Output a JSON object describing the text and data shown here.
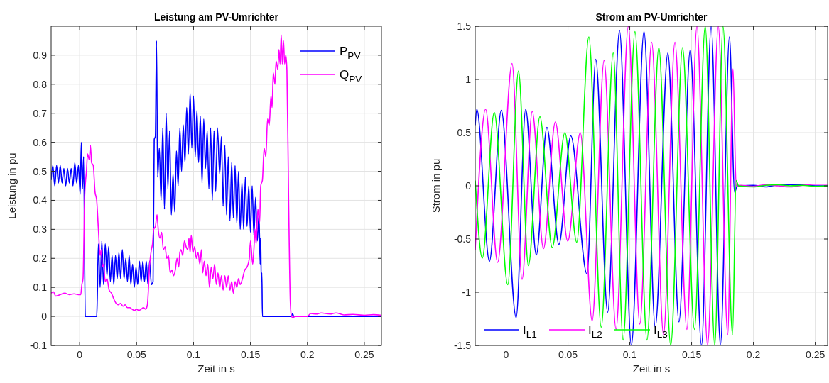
{
  "chart_data": [
    {
      "type": "line",
      "title": "Leistung am PV-Umrichter",
      "xlabel": "Zeit in s",
      "ylabel": "Leistung in pu",
      "xlim": [
        -0.025,
        0.265
      ],
      "xticks": [
        0,
        0.05,
        0.1,
        0.15,
        0.2,
        0.25
      ],
      "ylim": [
        -0.1,
        1
      ],
      "yticks": [
        -0.1,
        0,
        0.1,
        0.2,
        0.3,
        0.4,
        0.5,
        0.6,
        0.7,
        0.8,
        0.9
      ],
      "grid": true,
      "legend": "top right",
      "series": [
        {
          "name": "P$_{PV}$",
          "color": "#0000ff",
          "x": [
            -0.025,
            -0.0235,
            -0.0218,
            -0.0202,
            -0.0186,
            -0.017,
            -0.0154,
            -0.0138,
            -0.0122,
            -0.0106,
            -0.009,
            -0.0074,
            -0.0058,
            -0.0042,
            -0.0026,
            -0.001,
            0.0005,
            0.0015,
            0.0025,
            0.0035,
            0.005,
            0.015,
            0.0155,
            0.0165,
            0.018,
            0.0195,
            0.021,
            0.0225,
            0.024,
            0.0255,
            0.027,
            0.0285,
            0.03,
            0.0315,
            0.033,
            0.0345,
            0.036,
            0.0375,
            0.039,
            0.0405,
            0.042,
            0.0435,
            0.045,
            0.0465,
            0.048,
            0.0495,
            0.051,
            0.0525,
            0.054,
            0.0555,
            0.057,
            0.0585,
            0.06,
            0.0615,
            0.063,
            0.0645,
            0.0655,
            0.0665,
            0.0675,
            0.0685,
            0.07,
            0.0715,
            0.073,
            0.0745,
            0.076,
            0.0775,
            0.079,
            0.0805,
            0.082,
            0.0835,
            0.085,
            0.0865,
            0.088,
            0.0895,
            0.091,
            0.0925,
            0.094,
            0.0955,
            0.097,
            0.0985,
            0.1,
            0.1015,
            0.103,
            0.1045,
            0.106,
            0.1075,
            0.109,
            0.1105,
            0.112,
            0.1135,
            0.115,
            0.1165,
            0.118,
            0.1195,
            0.121,
            0.123,
            0.1245,
            0.126,
            0.1275,
            0.129,
            0.1305,
            0.132,
            0.1335,
            0.135,
            0.1365,
            0.138,
            0.1395,
            0.141,
            0.1425,
            0.144,
            0.1455,
            0.147,
            0.1485,
            0.15,
            0.1515,
            0.153,
            0.1545,
            0.156,
            0.1575,
            0.1585,
            0.159,
            0.1595,
            0.16,
            0.1605,
            0.186,
            0.187,
            0.188,
            0.265
          ],
          "values": [
            0.47,
            0.52,
            0.45,
            0.52,
            0.46,
            0.52,
            0.46,
            0.51,
            0.45,
            0.51,
            0.46,
            0.51,
            0.45,
            0.53,
            0.46,
            0.52,
            0.42,
            0.6,
            0.44,
            0.55,
            0,
            0,
            0.06,
            0.25,
            0.1,
            0.26,
            0.11,
            0.25,
            0.14,
            0.24,
            0.12,
            0.21,
            0.11,
            0.21,
            0.13,
            0.22,
            0.13,
            0.23,
            0.13,
            0.2,
            0.12,
            0.21,
            0.11,
            0.18,
            0.1,
            0.17,
            0.11,
            0.19,
            0.12,
            0.19,
            0.12,
            0.19,
            0.11,
            0.19,
            0.11,
            0.12,
            0.61,
            0.62,
            0.95,
            0.48,
            0.58,
            0.4,
            0.65,
            0.37,
            0.7,
            0.44,
            0.64,
            0.35,
            0.49,
            0.36,
            0.57,
            0.45,
            0.65,
            0.5,
            0.66,
            0.53,
            0.72,
            0.56,
            0.77,
            0.58,
            0.76,
            0.55,
            0.71,
            0.53,
            0.69,
            0.46,
            0.68,
            0.51,
            0.64,
            0.44,
            0.65,
            0.4,
            0.64,
            0.43,
            0.65,
            0.49,
            0.62,
            0.38,
            0.59,
            0.35,
            0.55,
            0.33,
            0.53,
            0.34,
            0.52,
            0.32,
            0.5,
            0.3,
            0.46,
            0.3,
            0.48,
            0.31,
            0.45,
            0.29,
            0.45,
            0.28,
            0.41,
            0.26,
            0.35,
            0.18,
            0.27,
            0.12,
            0.15,
            0,
            0,
            0.01,
            0,
            0
          ]
        },
        {
          "name": "Q$_{PV}$",
          "color": "#ff00ff",
          "x": [
            -0.025,
            -0.023,
            -0.021,
            -0.017,
            -0.013,
            -0.009,
            -0.005,
            -0.001,
            0.001,
            0.002,
            0.003,
            0.0045,
            0.006,
            0.007,
            0.0085,
            0.0095,
            0.0105,
            0.012,
            0.0135,
            0.015,
            0.0165,
            0.018,
            0.019,
            0.02,
            0.021,
            0.0225,
            0.024,
            0.026,
            0.028,
            0.03,
            0.032,
            0.034,
            0.036,
            0.038,
            0.04,
            0.042,
            0.044,
            0.046,
            0.048,
            0.05,
            0.052,
            0.054,
            0.056,
            0.058,
            0.0595,
            0.0615,
            0.063,
            0.064,
            0.065,
            0.0665,
            0.068,
            0.069,
            0.0705,
            0.072,
            0.0735,
            0.075,
            0.0765,
            0.078,
            0.0795,
            0.081,
            0.0825,
            0.084,
            0.0855,
            0.087,
            0.088,
            0.089,
            0.0905,
            0.092,
            0.0935,
            0.095,
            0.096,
            0.097,
            0.098,
            0.0995,
            0.101,
            0.1025,
            0.104,
            0.1055,
            0.107,
            0.108,
            0.1095,
            0.111,
            0.1125,
            0.114,
            0.1155,
            0.117,
            0.1185,
            0.12,
            0.1215,
            0.123,
            0.1245,
            0.126,
            0.1275,
            0.129,
            0.1305,
            0.132,
            0.1335,
            0.135,
            0.1365,
            0.138,
            0.1395,
            0.141,
            0.143,
            0.145,
            0.147,
            0.149,
            0.15,
            0.152,
            0.153,
            0.154,
            0.155,
            0.1565,
            0.158,
            0.159,
            0.1605,
            0.162,
            0.1635,
            0.165,
            0.1665,
            0.168,
            0.169,
            0.17,
            0.1715,
            0.1725,
            0.174,
            0.175,
            0.176,
            0.177,
            0.178,
            0.179,
            0.18,
            0.181,
            0.182,
            0.1835,
            0.185,
            0.186,
            0.1875,
            0.189,
            0.2,
            0.203,
            0.208,
            0.212,
            0.22,
            0.225,
            0.232,
            0.24,
            0.25,
            0.258,
            0.265
          ],
          "values": [
            0.08,
            0.085,
            0.07,
            0.075,
            0.08,
            0.075,
            0.078,
            0.075,
            0.075,
            0.11,
            0.13,
            0.42,
            0.5,
            0.56,
            0.54,
            0.59,
            0.53,
            0.52,
            0.43,
            0.4,
            0.3,
            0.21,
            0.23,
            0.17,
            0.18,
            0.12,
            0.13,
            0.09,
            0.08,
            0.06,
            0.045,
            0.04,
            0.045,
            0.035,
            0.04,
            0.03,
            0.03,
            0.025,
            0.02,
            0.025,
            0.02,
            0.025,
            0.03,
            0.025,
            0.04,
            0.18,
            0.23,
            0.25,
            0.3,
            0.31,
            0.35,
            0.3,
            0.27,
            0.29,
            0.23,
            0.24,
            0.2,
            0.21,
            0.15,
            0.16,
            0.14,
            0.16,
            0.2,
            0.17,
            0.22,
            0.23,
            0.21,
            0.26,
            0.24,
            0.23,
            0.27,
            0.22,
            0.28,
            0.22,
            0.24,
            0.2,
            0.22,
            0.18,
            0.23,
            0.15,
            0.19,
            0.14,
            0.18,
            0.1,
            0.17,
            0.13,
            0.18,
            0.11,
            0.15,
            0.1,
            0.14,
            0.09,
            0.14,
            0.1,
            0.14,
            0.09,
            0.12,
            0.08,
            0.12,
            0.1,
            0.13,
            0.11,
            0.13,
            0.16,
            0.17,
            0.2,
            0.26,
            0.18,
            0.23,
            0.3,
            0.25,
            0.37,
            0.32,
            0.45,
            0.47,
            0.58,
            0.55,
            0.68,
            0.66,
            0.76,
            0.72,
            0.84,
            0.8,
            0.88,
            0.85,
            0.92,
            0.87,
            0.97,
            0.87,
            0.95,
            0.87,
            0.9,
            0.85,
            0.4,
            0.05,
            0,
            -0.005,
            0,
            0,
            0.01,
            0.008,
            0.012,
            0.008,
            0.012,
            0.005,
            0.007,
            0.004,
            0.006,
            0.004
          ]
        }
      ]
    },
    {
      "type": "line",
      "title": "Strom am PV-Umrichter",
      "xlabel": "Zeit in s",
      "ylabel": "Strom in pu",
      "xlim": [
        -0.025,
        0.26
      ],
      "xticks": [
        0,
        0.05,
        0.1,
        0.15,
        0.2,
        0.25
      ],
      "ylim": [
        -1.5,
        1.5
      ],
      "yticks": [
        -1.5,
        -1,
        -0.5,
        0,
        0.5,
        1,
        1.5
      ],
      "grid": true,
      "legend": "bottom left",
      "series": [
        {
          "name": "I$_{L1}$",
          "color": "#0000ff",
          "x": [
            -0.025,
            -0.0237,
            -0.0135,
            -0.0039,
            0.0081,
            0.0158,
            0.0244,
            0.033,
            0.0427,
            0.0523,
            0.0654,
            0.0725,
            0.0821,
            0.0917,
            0.1013,
            0.1115,
            0.1206,
            0.1308,
            0.1398,
            0.1489,
            0.158,
            0.1658,
            0.1733,
            0.1806,
            0.1848,
            0.187,
            0.19,
            0.2,
            0.21,
            0.22,
            0.23,
            0.24,
            0.25,
            0.26
          ],
          "values": [
            0.57,
            0.72,
            -0.71,
            0.71,
            -1.24,
            0.72,
            -0.65,
            0.55,
            -0.55,
            0.47,
            -0.83,
            1.19,
            -1.19,
            1.46,
            -1.5,
            1.45,
            -1.33,
            1.25,
            -1.28,
            1.28,
            -1.5,
            1.5,
            -1.5,
            1.4,
            -0.06,
            0,
            0,
            0.005,
            -0.01,
            0.01,
            0.012,
            0.01,
            0,
            0
          ]
        },
        {
          "name": "I$_{L2}$",
          "color": "#ff00ff",
          "x": [
            -0.025,
            -0.0166,
            -0.0069,
            0.0048,
            0.0129,
            0.0211,
            0.0302,
            0.0398,
            0.0498,
            0.06,
            0.0696,
            0.0792,
            0.0889,
            0.0988,
            0.1081,
            0.1177,
            0.1273,
            0.1365,
            0.1462,
            0.1543,
            0.1629,
            0.1716,
            0.1792,
            0.1835,
            0.186,
            0.19,
            0.2,
            0.21,
            0.22,
            0.23,
            0.24,
            0.25,
            0.26
          ],
          "values": [
            -0.6,
            0.72,
            -0.72,
            1.15,
            -0.88,
            0.7,
            -0.59,
            0.6,
            -0.52,
            0.5,
            -1.27,
            1.18,
            -1.35,
            1.5,
            -1.3,
            1.35,
            -1.4,
            1.35,
            -1.35,
            1.5,
            -1.5,
            1.5,
            -1.4,
            1.1,
            0,
            0.005,
            -0.005,
            0.01,
            0,
            -0.01,
            0.005,
            0.015,
            0.015
          ]
        },
        {
          "name": "I$_{L3}$",
          "color": "#00ff00",
          "x": [
            -0.025,
            -0.0193,
            -0.0096,
            0.0013,
            0.01,
            0.018,
            0.0273,
            0.0373,
            0.0475,
            0.0571,
            0.0669,
            0.0769,
            0.0866,
            0.0946,
            0.1042,
            0.1139,
            0.1235,
            0.1331,
            0.1427,
            0.1523,
            0.161,
            0.1687,
            0.1754,
            0.1831,
            0.186,
            0.188,
            0.2,
            0.21,
            0.22,
            0.23,
            0.24,
            0.25,
            0.26
          ],
          "values": [
            0.05,
            -0.68,
            0.69,
            -0.93,
            1.08,
            -0.75,
            0.65,
            -0.58,
            0.5,
            -0.53,
            1.4,
            -1.33,
            1.25,
            -1.45,
            1.45,
            -1.45,
            1.3,
            -1.5,
            1.3,
            -1.35,
            1.5,
            -1.5,
            1.5,
            -1.4,
            0.05,
            0,
            -0.01,
            0.005,
            0.01,
            0,
            0.005,
            -0.005,
            0
          ]
        }
      ]
    }
  ]
}
